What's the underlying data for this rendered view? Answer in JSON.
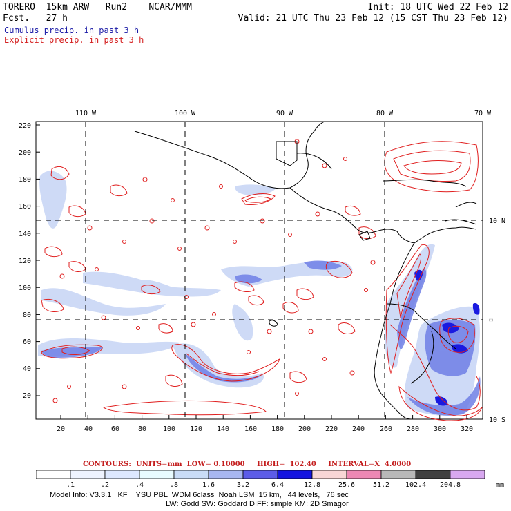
{
  "header": {
    "model_name": "TORERO",
    "resolution": "15km ARW",
    "run": "Run2",
    "org": "NCAR/MMM",
    "fcst_label": "Fcst.",
    "fcst_value": "27 h",
    "init": "Init: 18 UTC Wed 22 Feb 12",
    "valid": "Valid: 21 UTC Thu 23 Feb 12 (15 CST Thu 23 Feb 12)"
  },
  "legend": {
    "cumulus": "Cumulus precip. in past 3 h",
    "explicit": "Explicit precip. in past 3 h",
    "cumulus_color": "#1a1aa6",
    "explicit_color": "#d41f1f"
  },
  "map": {
    "top_lon_labels": [
      "110 W",
      "100 W",
      "90 W",
      "80 W",
      "70 W"
    ],
    "right_lat_labels": [
      "10 N",
      "0",
      "10 S"
    ],
    "y_ticks": [
      "220",
      "200",
      "180",
      "160",
      "140",
      "120",
      "100",
      "80",
      "60",
      "40",
      "20"
    ],
    "x_ticks": [
      "20",
      "40",
      "60",
      "80",
      "100",
      "120",
      "140",
      "160",
      "180",
      "200",
      "220",
      "240",
      "260",
      "280",
      "300",
      "320"
    ]
  },
  "contours": {
    "units": "CONTOURS:  UNITS=mm  LOW= 0.10000",
    "high": "HIGH=  102.40",
    "interval": "INTERVAL=X  4.0000"
  },
  "colorbar": {
    "labels": [
      ".1",
      ".2",
      ".4",
      ".8",
      "1.6",
      "3.2",
      "6.4",
      "12.8",
      "25.6",
      "51.2",
      "102.4",
      "204.8"
    ],
    "unit": "mm",
    "colors": [
      "#ffffff",
      "#eef3ff",
      "#dde8ff",
      "#e8fbff",
      "#c9dcf7",
      "#a8b7f1",
      "#5c5ce8",
      "#1414e0",
      "#f8d6d6",
      "#ee88b4",
      "#b8b8b8",
      "#404040",
      "#d8a8f0"
    ]
  },
  "model_info": {
    "line1": "Model Info: V3.3.1   KF    YSU PBL  WDM 6class  Noah LSM  15 km,   44 levels,   76 sec",
    "line2": "LW: Godd SW: Goddard DIFF: simple KM: 2D Smagor"
  }
}
